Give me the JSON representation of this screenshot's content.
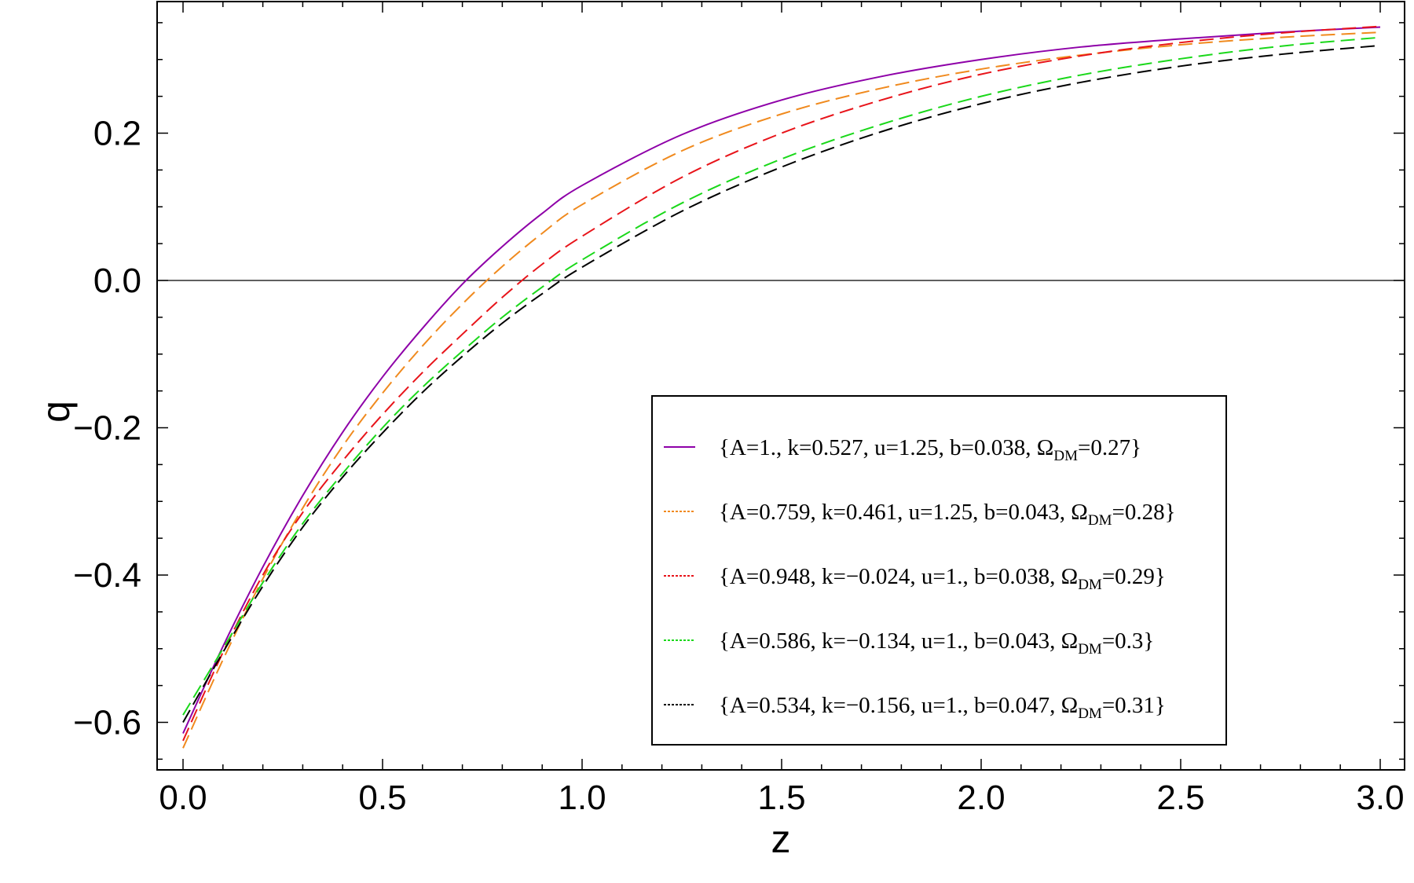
{
  "chart_data": {
    "type": "line",
    "xlabel": "z",
    "ylabel": "q",
    "xlim": [
      0,
      3.0
    ],
    "ylim": [
      -0.665,
      0.375
    ],
    "x_ticks": [
      "0.0",
      "0.5",
      "1.0",
      "1.5",
      "2.0",
      "2.5",
      "3.0"
    ],
    "x_tick_values": [
      0,
      0.5,
      1.0,
      1.5,
      2.0,
      2.5,
      3.0
    ],
    "y_ticks": [
      "0.2",
      "0.0",
      "−0.2",
      "−0.4",
      "−0.6"
    ],
    "y_tick_values": [
      0.2,
      0.0,
      -0.2,
      -0.4,
      -0.6
    ],
    "grid": false,
    "zero_line": true,
    "legend_position": "lower-right",
    "series": [
      {
        "name": "{A=1., k=0.527, u=1.25, b=0.038, Ω_DM=0.27}",
        "label_main": "{A=1., k=0.527, u=1.25, b=0.038, Ω",
        "label_sub": "DM",
        "label_tail": "=0.27}",
        "color": "#8e00a8",
        "dash": "solid",
        "x": [
          0,
          0.1,
          0.2,
          0.3,
          0.4,
          0.5,
          0.6,
          0.7,
          0.8,
          0.9,
          1.0,
          1.25,
          1.5,
          1.75,
          2.0,
          2.25,
          2.5,
          2.75,
          3.0
        ],
        "y": [
          -0.615,
          -0.497,
          -0.389,
          -0.292,
          -0.206,
          -0.131,
          -0.065,
          -0.005,
          0.046,
          0.091,
          0.129,
          0.198,
          0.245,
          0.277,
          0.3,
          0.317,
          0.328,
          0.337,
          0.344
        ]
      },
      {
        "name": "{A=0.759, k=0.461, u=1.25, b=0.043, Ω_DM=0.28}",
        "label_main": "{A=0.759, k=0.461, u=1.25, b=0.043, Ω",
        "label_sub": "DM",
        "label_tail": "=0.28}",
        "color": "#f08a1e",
        "dash": "dashed",
        "x": [
          0,
          0.1,
          0.2,
          0.3,
          0.4,
          0.5,
          0.6,
          0.7,
          0.8,
          0.9,
          1.0,
          1.25,
          1.5,
          1.75,
          2.0,
          2.25,
          2.5,
          2.75,
          3.0
        ],
        "y": [
          -0.635,
          -0.515,
          -0.405,
          -0.309,
          -0.225,
          -0.153,
          -0.089,
          -0.032,
          0.019,
          0.064,
          0.103,
          0.176,
          0.226,
          0.261,
          0.287,
          0.306,
          0.32,
          0.33,
          0.337
        ]
      },
      {
        "name": "{A=0.948, k=−0.024, u=1., b=0.038, Ω_DM=0.29}",
        "label_main": "{A=0.948, k=−0.024, u=1., b=0.038, Ω",
        "label_sub": "DM",
        "label_tail": "=0.29}",
        "color": "#e8141a",
        "dash": "dashed",
        "x": [
          0,
          0.1,
          0.2,
          0.3,
          0.4,
          0.5,
          0.6,
          0.7,
          0.8,
          0.9,
          1.0,
          1.25,
          1.5,
          1.75,
          2.0,
          2.25,
          2.5,
          2.75,
          3.0
        ],
        "y": [
          -0.625,
          -0.505,
          -0.4,
          -0.315,
          -0.245,
          -0.182,
          -0.125,
          -0.073,
          -0.023,
          0.022,
          0.06,
          0.14,
          0.2,
          0.245,
          0.28,
          0.305,
          0.323,
          0.336,
          0.345
        ]
      },
      {
        "name": "{A=0.586, k=−0.134, u=1., b=0.043, Ω_DM=0.3}",
        "label_main": "{A=0.586, k=−0.134, u=1., b=0.043, Ω",
        "label_sub": "DM",
        "label_tail": "=0.3}",
        "color": "#1ad81a",
        "dash": "dashed",
        "x": [
          0,
          0.1,
          0.2,
          0.3,
          0.4,
          0.5,
          0.6,
          0.7,
          0.8,
          0.9,
          1.0,
          1.25,
          1.5,
          1.75,
          2.0,
          2.25,
          2.5,
          2.75,
          3.0
        ],
        "y": [
          -0.59,
          -0.5,
          -0.41,
          -0.33,
          -0.262,
          -0.2,
          -0.145,
          -0.096,
          -0.05,
          -0.009,
          0.028,
          0.105,
          0.165,
          0.212,
          0.25,
          0.279,
          0.301,
          0.318,
          0.33
        ]
      },
      {
        "name": "{A=0.534, k=−0.156, u=1., b=0.047, Ω_DM=0.31}",
        "label_main": "{A=0.534, k=−0.156, u=1., b=0.047, Ω",
        "label_sub": "DM",
        "label_tail": "=0.31}",
        "color": "#000000",
        "dash": "dashed",
        "x": [
          0,
          0.1,
          0.2,
          0.3,
          0.4,
          0.5,
          0.6,
          0.7,
          0.8,
          0.9,
          1.0,
          1.25,
          1.5,
          1.75,
          2.0,
          2.25,
          2.5,
          2.75,
          3.0
        ],
        "y": [
          -0.6,
          -0.505,
          -0.415,
          -0.335,
          -0.267,
          -0.207,
          -0.152,
          -0.103,
          -0.058,
          -0.018,
          0.018,
          0.094,
          0.154,
          0.202,
          0.24,
          0.269,
          0.291,
          0.307,
          0.319
        ]
      }
    ]
  }
}
